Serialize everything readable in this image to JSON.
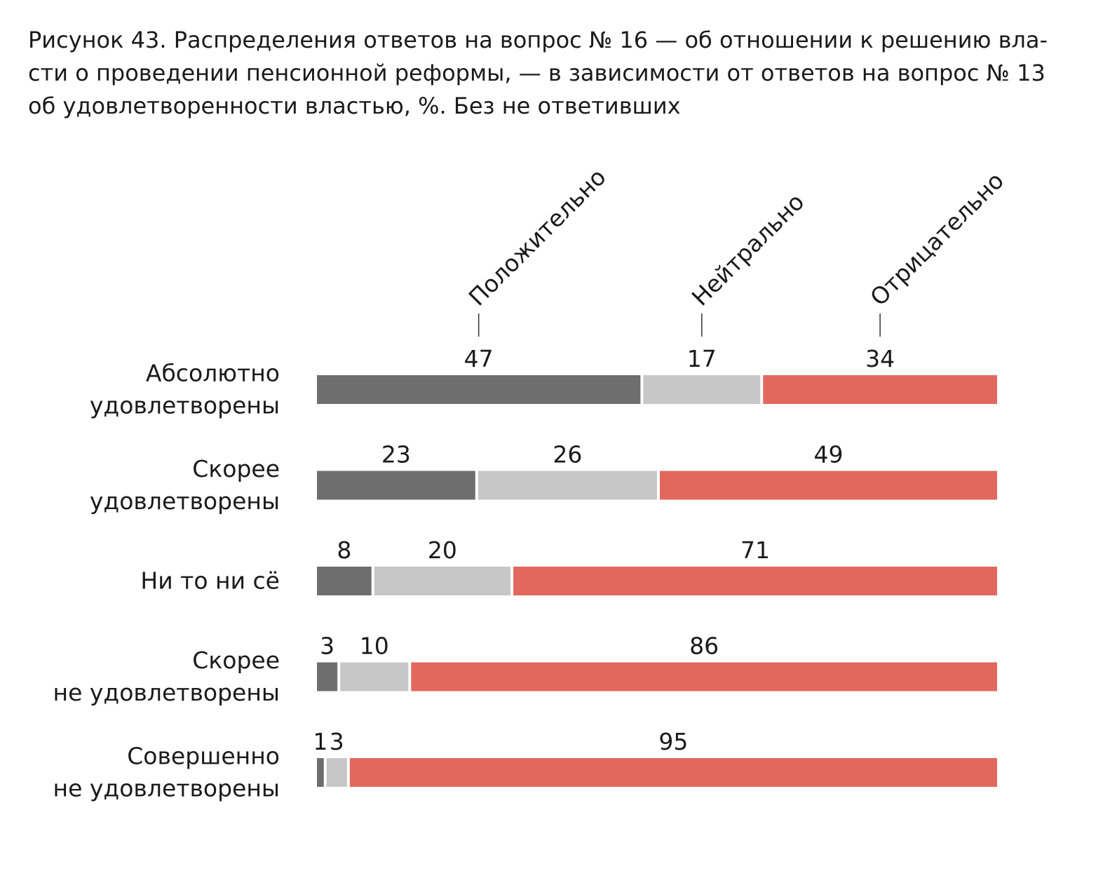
{
  "caption": {
    "lines": [
      "Рисунок 43. Распределения ответов на вопрос № 16 — об отношении к решению вла-",
      "сти о проведении пенсионной реформы, — в зависимости от ответов на вопрос № 13",
      "об удовлетворенности властью, %. Без не ответивших"
    ]
  },
  "chart_data": {
    "type": "bar",
    "orientation": "horizontal",
    "stacked": true,
    "title": "Рисунок 43. Распределения ответов на вопрос № 16 — об отношении к решению власти о проведении пенсионной реформы, — в зависимости от ответов на вопрос № 13 об удовлетворенности властью, %. Без не ответивших",
    "categories": [
      [
        "Абсолютно",
        "удовлетворены"
      ],
      [
        "Скорее",
        "удовлетворены"
      ],
      [
        "Ни то ни сё"
      ],
      [
        "Скорее",
        "не удовлетворены"
      ],
      [
        "Совершенно",
        "не удовлетворены"
      ]
    ],
    "series": [
      {
        "name": "Положительно",
        "color": "#6e6e6e",
        "values": [
          47,
          23,
          8,
          3,
          1
        ]
      },
      {
        "name": "Нейтрально",
        "color": "#c6c7c6",
        "values": [
          17,
          26,
          20,
          10,
          3
        ]
      },
      {
        "name": "Отрицательно",
        "color": "#e2685d",
        "values": [
          34,
          49,
          71,
          86,
          95
        ]
      }
    ],
    "legend": "top, rotated labels with leader lines above the first bar",
    "grid": false
  }
}
